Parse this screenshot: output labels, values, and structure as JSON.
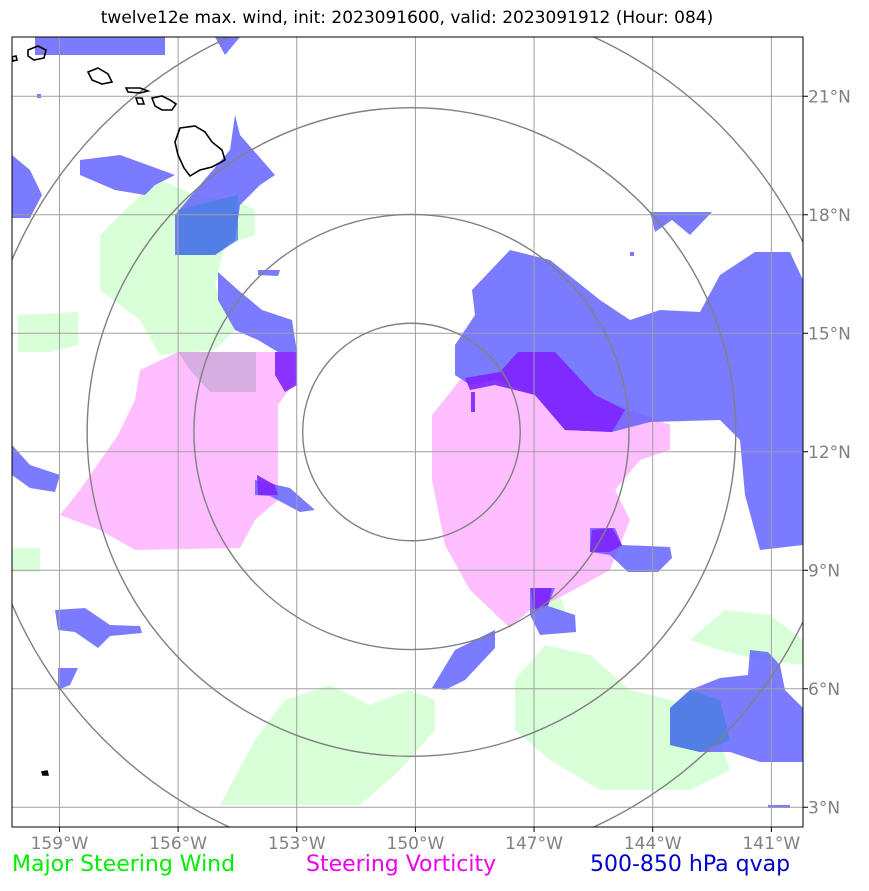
{
  "title": "twelve12e max. wind, init: 2023091600, valid: 2023091912 (Hour: 084)",
  "legend": {
    "wind": {
      "label": "Major Steering Wind",
      "color": "#00ee00"
    },
    "vorticity": {
      "label": "Steering Vorticity",
      "color": "#ee00ee"
    },
    "qvap": {
      "label": "500-850 hPa qvap",
      "color": "#0000cc"
    }
  },
  "map": {
    "lon_range": [
      -160.2,
      -140.2
    ],
    "lat_range": [
      2.5,
      22.5
    ],
    "lon_ticks": [
      {
        "value": -159,
        "label": "159°W"
      },
      {
        "value": -156,
        "label": "156°W"
      },
      {
        "value": -153,
        "label": "153°W"
      },
      {
        "value": -150,
        "label": "150°W"
      },
      {
        "value": -147,
        "label": "147°W"
      },
      {
        "value": -144,
        "label": "144°W"
      },
      {
        "value": -141,
        "label": "141°W"
      }
    ],
    "lat_ticks": [
      {
        "value": 3,
        "label": "3°N"
      },
      {
        "value": 6,
        "label": "6°N"
      },
      {
        "value": 9,
        "label": "9°N"
      },
      {
        "value": 12,
        "label": "12°N"
      },
      {
        "value": 15,
        "label": "15°N"
      },
      {
        "value": 18,
        "label": "18°N"
      },
      {
        "value": 21,
        "label": "21°N"
      }
    ],
    "rings_center": [
      -150.1,
      12.5
    ],
    "ring_radii_deg": [
      2.75,
      5.5,
      8.2,
      11.0
    ]
  }
}
